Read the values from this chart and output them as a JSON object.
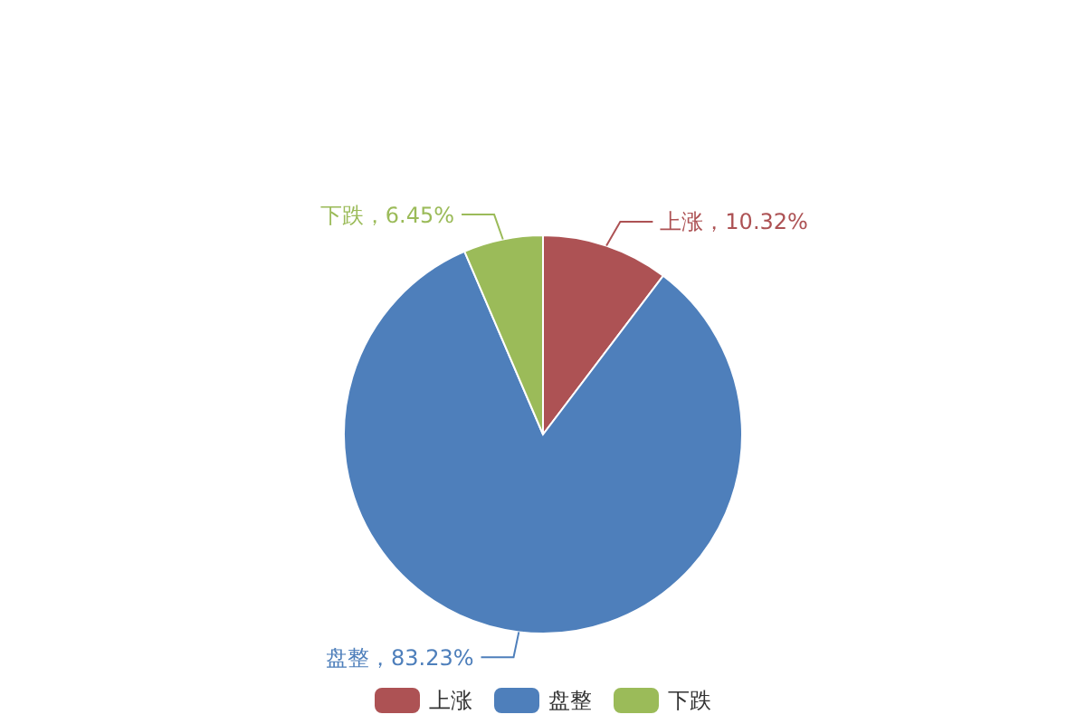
{
  "chart_data": {
    "type": "pie",
    "categories": [
      "上涨",
      "盘整",
      "下跌"
    ],
    "values": [
      10.32,
      83.23,
      6.45
    ],
    "colors": [
      "#ad5254",
      "#4e7fbb",
      "#9bbb59"
    ],
    "value_labels": [
      "上涨，10.32%",
      "盘整，83.23%",
      "下跌，6.45%"
    ],
    "legend": "bottom"
  }
}
